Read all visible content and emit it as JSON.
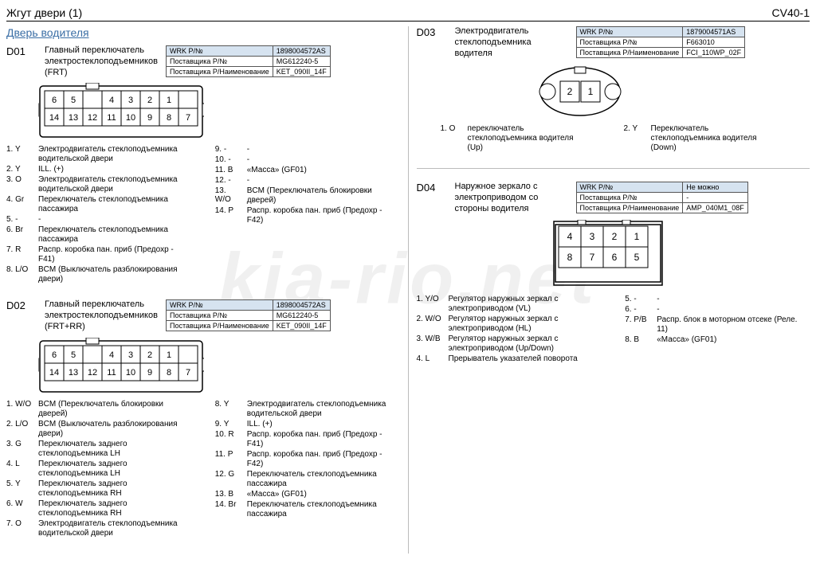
{
  "header": {
    "title": "Жгут двери (1)",
    "code": "CV40-1"
  },
  "subtitle": "Дверь водителя",
  "watermark": "kia-rio.net",
  "infoLabels": {
    "wrk": "WRK P/№",
    "supplier": "Поставщика P/№",
    "supplierName": "Поставщика P/Наименование"
  },
  "sections": {
    "D01": {
      "code": "D01",
      "title": "Главный переключатель электростеклоподъемников (FRT)",
      "info": {
        "wrk": "1898004572AS",
        "supplier": "MG612240-5",
        "name": "KET_090II_14F"
      },
      "connector": {
        "type": "conn14",
        "rows": [
          [
            "6",
            "5",
            "",
            "4",
            "3",
            "2",
            "1"
          ],
          [
            "14",
            "13",
            "12",
            "11",
            "10",
            "9",
            "8",
            "7"
          ]
        ]
      },
      "pinsLeft": [
        {
          "n": "1. Y",
          "d": "Электродвигатель стеклоподъемника водительской двери"
        },
        {
          "n": "2. Y",
          "d": "ILL. (+)"
        },
        {
          "n": "3. O",
          "d": "Электродвигатель стеклоподъемника водительской двери"
        },
        {
          "n": "4. Gr",
          "d": "Переключатель стеклоподъемника пассажира"
        },
        {
          "n": "5. -",
          "d": "-"
        },
        {
          "n": "6. Br",
          "d": "Переключатель стеклоподъемника пассажира"
        },
        {
          "n": "7. R",
          "d": "Распр. коробка пан. приб (Предохр - F41)"
        },
        {
          "n": "8. L/O",
          "d": "BCM (Выключатель разблокирования двери)"
        }
      ],
      "pinsRight": [
        {
          "n": "9. -",
          "d": "-"
        },
        {
          "n": "10. -",
          "d": "-"
        },
        {
          "n": "11. B",
          "d": "«Масса» (GF01)"
        },
        {
          "n": "12. -",
          "d": "-"
        },
        {
          "n": "13. W/O",
          "d": "BCM (Переключатель блокировки дверей)"
        },
        {
          "n": "14. P",
          "d": "Распр. коробка пан. приб (Предохр - F42)"
        }
      ]
    },
    "D02": {
      "code": "D02",
      "title": "Главный переключатель электростеклоподъемников (FRT+RR)",
      "info": {
        "wrk": "1898004572AS",
        "supplier": "MG612240-5",
        "name": "KET_090II_14F"
      },
      "connector": {
        "type": "conn14",
        "rows": [
          [
            "6",
            "5",
            "",
            "4",
            "3",
            "2",
            "1"
          ],
          [
            "14",
            "13",
            "12",
            "11",
            "10",
            "9",
            "8",
            "7"
          ]
        ]
      },
      "pinsLeft": [
        {
          "n": "1. W/O",
          "d": "BCM (Переключатель блокировки дверей)"
        },
        {
          "n": "2. L/O",
          "d": "BCM (Выключатель разблокирования двери)"
        },
        {
          "n": "3. G",
          "d": "Переключатель заднего стеклоподъемника LH"
        },
        {
          "n": "4. L",
          "d": "Переключатель заднего стеклоподъемника LH"
        },
        {
          "n": "5. Y",
          "d": "Переключатель заднего стеклоподъемника RH"
        },
        {
          "n": "6. W",
          "d": "Переключатель заднего стеклоподъемника RH"
        },
        {
          "n": "7. O",
          "d": "Электродвигатель стеклоподъемника водительской двери"
        }
      ],
      "pinsRight": [
        {
          "n": "8. Y",
          "d": "Электродвигатель стеклоподъемника водительской двери"
        },
        {
          "n": "9. Y",
          "d": "ILL. (+)"
        },
        {
          "n": "10. R",
          "d": "Распр. коробка пан. приб (Предохр - F41)"
        },
        {
          "n": "11. P",
          "d": "Распр. коробка пан. приб (Предохр - F42)"
        },
        {
          "n": "12. G",
          "d": "Переключатель стеклоподъемника пассажира"
        },
        {
          "n": "13. B",
          "d": "«Масса» (GF01)"
        },
        {
          "n": "14. Br",
          "d": "Переключатель стеклоподъемника пассажира"
        }
      ]
    },
    "D03": {
      "code": "D03",
      "title": "Электродвигатель стеклоподъемника водителя",
      "info": {
        "wrk": "1879004571AS",
        "supplier": "F663010",
        "name": "FCI_110WP_02F"
      },
      "connector": {
        "type": "conn2round",
        "cells": [
          "2",
          "1"
        ]
      },
      "pinsInline": [
        {
          "n": "1. O",
          "d": "переключатель стеклоподъемника водителя (Up)"
        },
        {
          "n": "2. Y",
          "d": "Переключатель стеклоподъемника водителя (Down)"
        }
      ]
    },
    "D04": {
      "code": "D04",
      "title": "Наружное зеркало с электроприводом со стороны водителя",
      "info": {
        "wrk": "Не можно",
        "supplier": "-",
        "name": "AMP_040M1_08F"
      },
      "connector": {
        "type": "conn8",
        "rows": [
          [
            "4",
            "3",
            "2",
            "1"
          ],
          [
            "8",
            "7",
            "6",
            "5"
          ]
        ]
      },
      "pinsLeft": [
        {
          "n": "1. Y/O",
          "d": "Регулятор наружных зеркал с электроприводом (VL)"
        },
        {
          "n": "2. W/O",
          "d": "Регулятор наружных зеркал с электроприводом (HL)"
        },
        {
          "n": "3. W/B",
          "d": "Регулятор наружных зеркал с электроприводом (Up/Down)"
        },
        {
          "n": "4. L",
          "d": "Прерыватель указателей поворота"
        }
      ],
      "pinsRight": [
        {
          "n": "5. -",
          "d": "-"
        },
        {
          "n": "6. -",
          "d": "-"
        },
        {
          "n": "7. P/B",
          "d": "Распр. блок в моторном отсеке (Реле. 11)"
        },
        {
          "n": "8. B",
          "d": "«Масса» (GF01)"
        }
      ]
    }
  }
}
